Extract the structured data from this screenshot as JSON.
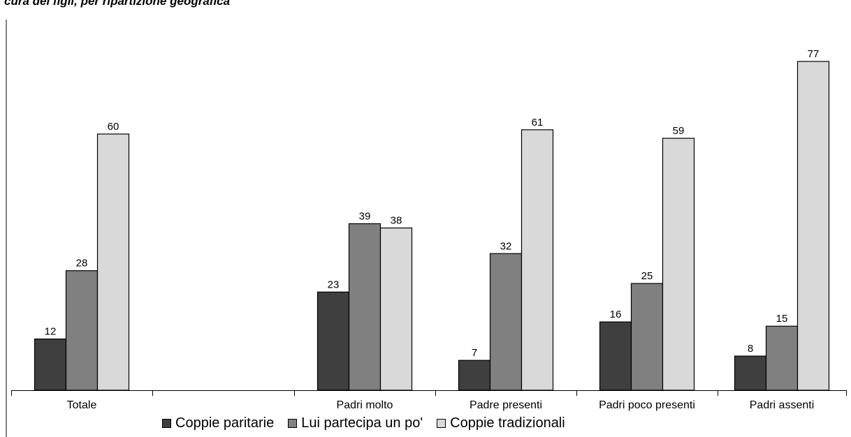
{
  "title_fragment": "cura dei figli, per ripartizione geografica",
  "chart_data": {
    "type": "bar",
    "categories": [
      "Totale",
      "",
      "Padri molto",
      "Padre presenti",
      "Padri poco presenti",
      "Padri assenti"
    ],
    "series": [
      {
        "name": "Coppie paritarie",
        "color": "#3f3f3f",
        "values": [
          12,
          null,
          23,
          7,
          16,
          8
        ]
      },
      {
        "name": "Lui partecipa un po'",
        "color": "#808080",
        "values": [
          28,
          null,
          39,
          32,
          25,
          15
        ]
      },
      {
        "name": "Coppie tradizionali",
        "color": "#d9d9d9",
        "values": [
          60,
          null,
          38,
          61,
          59,
          77
        ]
      }
    ],
    "ylim": [
      0,
      77
    ],
    "grid": false,
    "legend_position": "bottom"
  }
}
